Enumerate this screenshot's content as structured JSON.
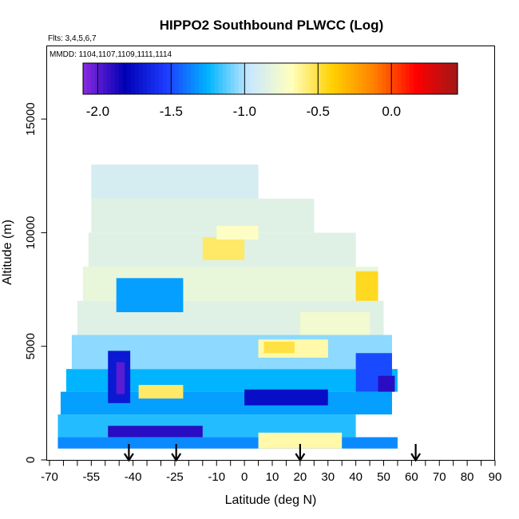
{
  "chart_data": {
    "type": "heatmap",
    "title": "HIPPO2 Southbound PLWCC (Log)",
    "annotations": {
      "flights": "Flts: 3,4,5,6,7",
      "dates": "MMDD: 1104,1107,1109,1111,1114"
    },
    "xlabel": "Latitude (deg N)",
    "ylabel": "Altitude (m)",
    "xlim": [
      -70,
      90
    ],
    "ylim": [
      0,
      17500
    ],
    "x_ticks": [
      -70,
      -55,
      -40,
      -25,
      -10,
      0,
      10,
      20,
      30,
      40,
      50,
      60,
      70,
      80,
      90
    ],
    "x_tick_labels": [
      "-70",
      "-55",
      "-40",
      "-25",
      "-10",
      "0",
      "10",
      "20",
      "30",
      "40",
      "50",
      "60",
      "70",
      "80",
      "90"
    ],
    "x_minor_step": 5,
    "y_ticks": [
      0,
      5000,
      10000,
      15000
    ],
    "y_tick_labels": [
      "0",
      "5000",
      "10000",
      "15000"
    ],
    "colorbar": {
      "range": [
        -2.1,
        0.45
      ],
      "ticks": [
        -2.0,
        -1.5,
        -1.0,
        -0.5,
        0.0
      ],
      "tick_labels": [
        "-2.0",
        "-1.5",
        "-1.0",
        "-0.5",
        "0.0"
      ],
      "colors": [
        "#8a2be2",
        "#0000b4",
        "#1e3cff",
        "#00b4ff",
        "#c8e8ff",
        "#ffffc0",
        "#ffd000",
        "#ff8000",
        "#ff0000",
        "#a01818"
      ]
    },
    "arrow_latitudes": [
      -41.5,
      -24.5,
      20,
      61.5
    ],
    "data_layers": [
      {
        "lat": [
          -67,
          55
        ],
        "alt": [
          500,
          1000
        ],
        "value": -1.35
      },
      {
        "lat": [
          -67,
          40
        ],
        "alt": [
          1000,
          2000
        ],
        "value": -1.2
      },
      {
        "lat": [
          -66,
          53
        ],
        "alt": [
          2000,
          3000
        ],
        "value": -1.3
      },
      {
        "lat": [
          -64,
          55
        ],
        "alt": [
          3000,
          4000
        ],
        "value": -1.25
      },
      {
        "lat": [
          -62,
          53
        ],
        "alt": [
          4000,
          5500
        ],
        "value": -1.05
      },
      {
        "lat": [
          -60,
          50
        ],
        "alt": [
          5500,
          7000
        ],
        "value": -0.85
      },
      {
        "lat": [
          -58,
          48
        ],
        "alt": [
          7000,
          8500
        ],
        "value": -0.8
      },
      {
        "lat": [
          -56,
          40
        ],
        "alt": [
          8500,
          10000
        ],
        "value": -0.85
      },
      {
        "lat": [
          -55,
          25
        ],
        "alt": [
          10000,
          11500
        ],
        "value": -0.85
      },
      {
        "lat": [
          -55,
          5
        ],
        "alt": [
          11500,
          13000
        ],
        "value": -0.9
      }
    ],
    "data_features": [
      {
        "lat": [
          -46,
          -22
        ],
        "alt": [
          6500,
          8000
        ],
        "value": -1.3
      },
      {
        "lat": [
          -49,
          -41
        ],
        "alt": [
          2500,
          4800
        ],
        "value": -1.7
      },
      {
        "lat": [
          -46,
          -43
        ],
        "alt": [
          2900,
          4300
        ],
        "value": -2.0
      },
      {
        "lat": [
          -49,
          -15
        ],
        "alt": [
          1000,
          1500
        ],
        "value": -1.9
      },
      {
        "lat": [
          0,
          30
        ],
        "alt": [
          2400,
          3100
        ],
        "value": -1.75
      },
      {
        "lat": [
          40,
          53
        ],
        "alt": [
          3000,
          4700
        ],
        "value": -1.5
      },
      {
        "lat": [
          48,
          54
        ],
        "alt": [
          3000,
          3700
        ],
        "value": -1.9
      },
      {
        "lat": [
          -38,
          -22
        ],
        "alt": [
          2700,
          3300
        ],
        "value": -0.55
      },
      {
        "lat": [
          5,
          30
        ],
        "alt": [
          4500,
          5200
        ],
        "value": -0.6
      },
      {
        "lat": [
          5,
          30
        ],
        "alt": [
          4500,
          5300
        ],
        "value": -0.65
      },
      {
        "lat": [
          7,
          18
        ],
        "alt": [
          4700,
          5200
        ],
        "value": -0.5
      },
      {
        "lat": [
          20,
          45
        ],
        "alt": [
          5500,
          6500
        ],
        "value": -0.75
      },
      {
        "lat": [
          40,
          48
        ],
        "alt": [
          7000,
          8300
        ],
        "value": -0.45
      },
      {
        "lat": [
          -15,
          0
        ],
        "alt": [
          8800,
          9800
        ],
        "value": -0.55
      },
      {
        "lat": [
          -10,
          5
        ],
        "alt": [
          9700,
          10300
        ],
        "value": -0.7
      },
      {
        "lat": [
          5,
          35
        ],
        "alt": [
          500,
          1200
        ],
        "value": -0.65
      }
    ]
  }
}
